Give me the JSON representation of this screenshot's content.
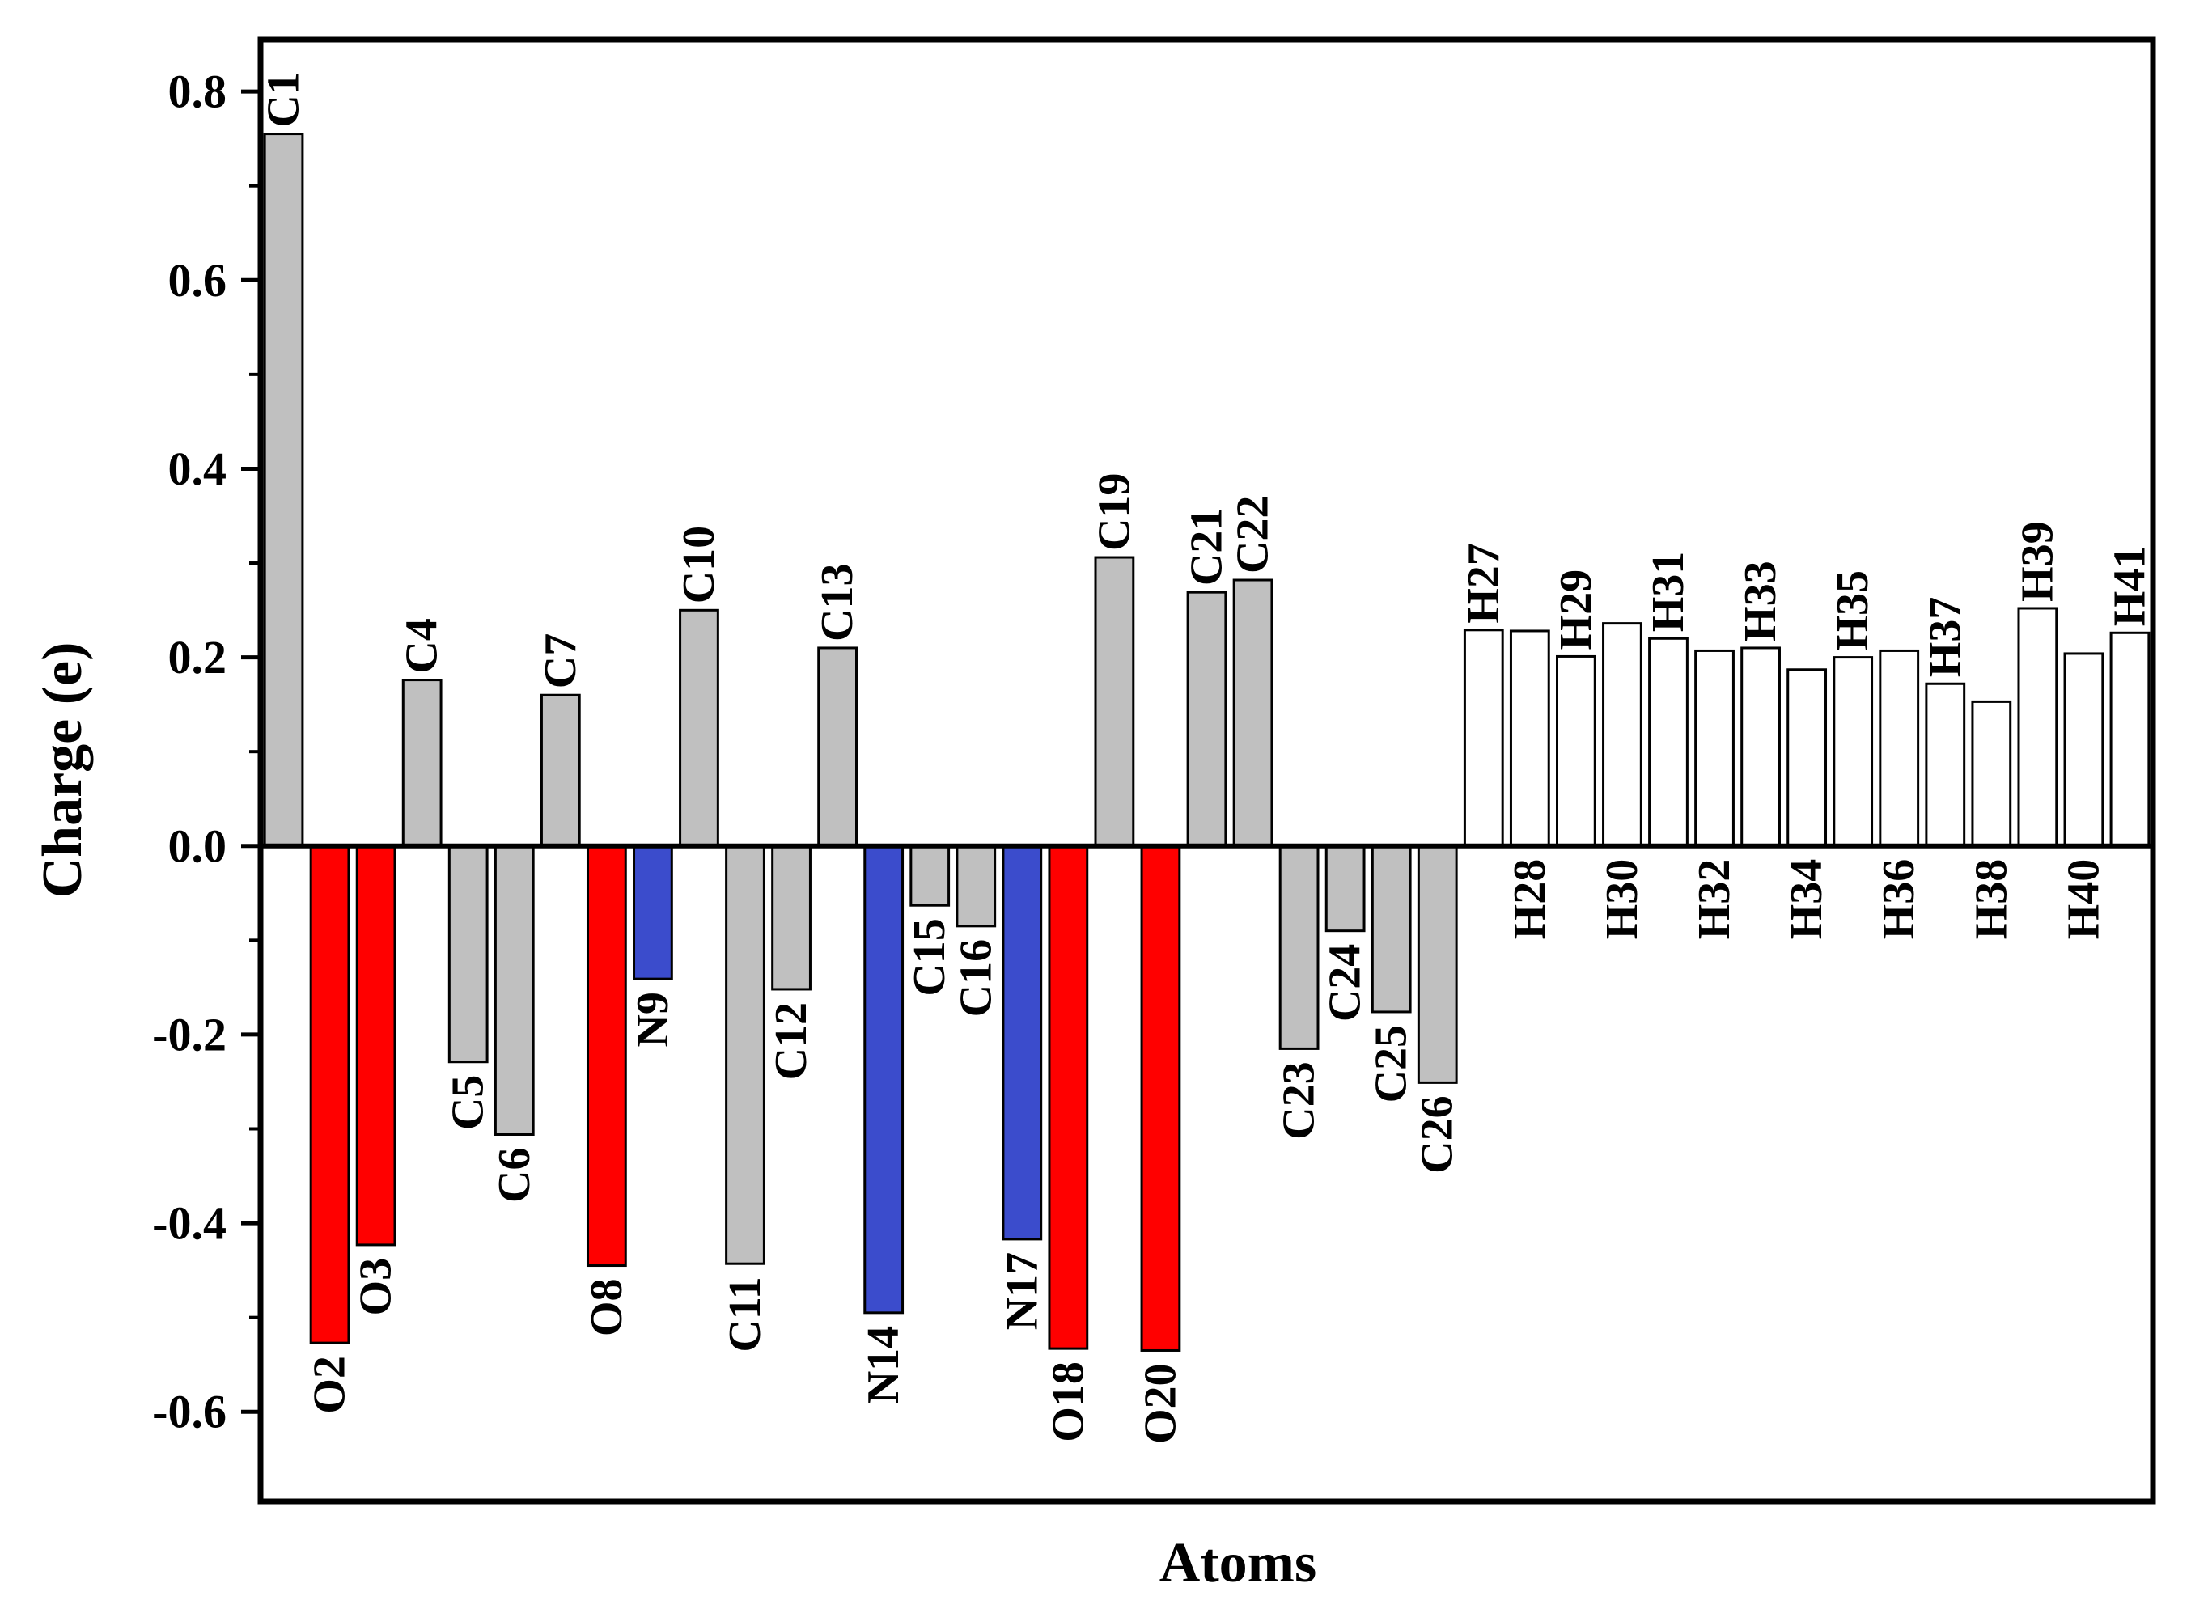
{
  "chart_data": {
    "type": "bar",
    "title": "",
    "xlabel": "Atoms",
    "ylabel": "Charge (e)",
    "ylim": [
      -0.695,
      0.855
    ],
    "yticks": [
      -0.6,
      -0.4,
      -0.2,
      0.0,
      0.2,
      0.4,
      0.6,
      0.8
    ],
    "ytick_labels": [
      "-0.6",
      "-0.4",
      "-0.2",
      "0.0",
      "0.2",
      "0.4",
      "0.6",
      "0.8"
    ],
    "grid": false,
    "legend": "none",
    "colors": {
      "carbon": "#c0c0c0",
      "oxygen": "#ff0000",
      "nitrogen": "#3b4ccc",
      "hydrogen": "#ffffff",
      "outline": "#000000"
    },
    "categories": [
      "C1",
      "O2",
      "O3",
      "C4",
      "C5",
      "C6",
      "C7",
      "O8",
      "N9",
      "C10",
      "C11",
      "C12",
      "C13",
      "N14",
      "C15",
      "C16",
      "N17",
      "O18",
      "C19",
      "O20",
      "C21",
      "C22",
      "C23",
      "C24",
      "C25",
      "C26",
      "H27",
      "H28",
      "H29",
      "H30",
      "H31",
      "H32",
      "H33",
      "H34",
      "H35",
      "H36",
      "H37",
      "H38",
      "H39",
      "H40",
      "H41"
    ],
    "values": [
      0.755,
      -0.527,
      -0.423,
      0.176,
      -0.229,
      -0.306,
      0.16,
      -0.445,
      -0.141,
      0.25,
      -0.443,
      -0.152,
      0.21,
      -0.495,
      -0.063,
      -0.085,
      -0.417,
      -0.533,
      0.306,
      -0.535,
      0.269,
      0.282,
      -0.215,
      -0.09,
      -0.176,
      -0.251,
      0.229,
      0.228,
      0.201,
      0.236,
      0.22,
      0.207,
      0.21,
      0.187,
      0.2,
      0.207,
      0.172,
      0.153,
      0.252,
      0.204,
      0.226
    ],
    "element_types": [
      "carbon",
      "oxygen",
      "oxygen",
      "carbon",
      "carbon",
      "carbon",
      "carbon",
      "oxygen",
      "nitrogen",
      "carbon",
      "carbon",
      "carbon",
      "carbon",
      "nitrogen",
      "carbon",
      "carbon",
      "nitrogen",
      "oxygen",
      "carbon",
      "oxygen",
      "carbon",
      "carbon",
      "carbon",
      "carbon",
      "carbon",
      "carbon",
      "hydrogen",
      "hydrogen",
      "hydrogen",
      "hydrogen",
      "hydrogen",
      "hydrogen",
      "hydrogen",
      "hydrogen",
      "hydrogen",
      "hydrogen",
      "hydrogen",
      "hydrogen",
      "hydrogen",
      "hydrogen",
      "hydrogen"
    ],
    "label_position": [
      "end",
      "end",
      "end",
      "end",
      "end",
      "end",
      "end",
      "end",
      "end",
      "end",
      "end",
      "end",
      "end",
      "end",
      "end",
      "end",
      "end",
      "end",
      "end",
      "end",
      "end",
      "end",
      "end",
      "end",
      "end",
      "end",
      "end",
      "below",
      "end",
      "below",
      "end",
      "below",
      "end",
      "below",
      "end",
      "below",
      "end",
      "below",
      "end",
      "below",
      "end"
    ]
  }
}
